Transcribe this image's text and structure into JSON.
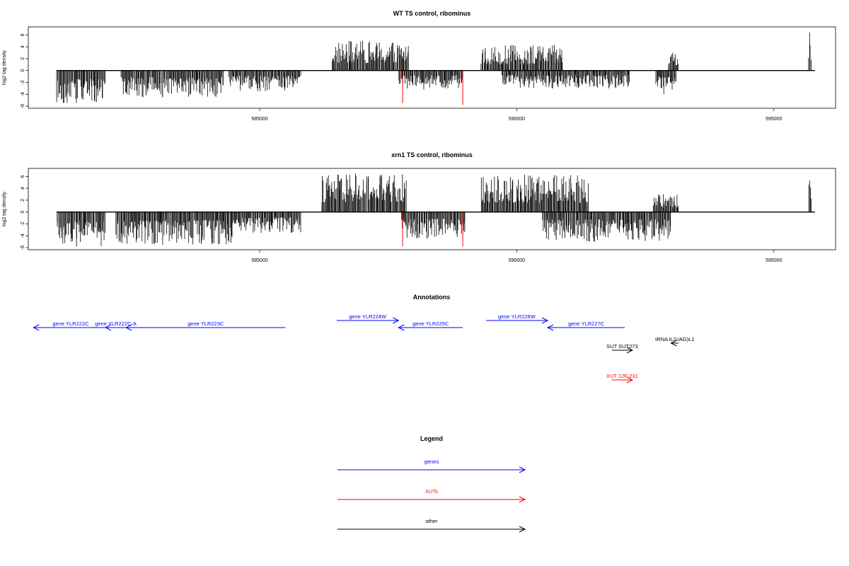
{
  "panels": [
    {
      "title": "WT TS control, ribominus",
      "ylabel": "log2 tag density",
      "yticks": [
        -6,
        -4,
        -2,
        0,
        2,
        4,
        6
      ],
      "xticks": [
        585000,
        590000,
        595000
      ],
      "ylim": [
        -6,
        7
      ],
      "xlim": [
        580500,
        596200
      ],
      "plus_strand": [
        {
          "from": 586400,
          "to": 587900,
          "max": 5.0
        },
        {
          "from": 589300,
          "to": 590900,
          "max": 4.3
        },
        {
          "from": 592950,
          "to": 593150,
          "max": 3.0
        },
        {
          "from": 595670,
          "to": 595730,
          "max": 6.4
        }
      ],
      "minus_strand": [
        {
          "from": 581050,
          "to": 582000,
          "min": -5.5
        },
        {
          "from": 582300,
          "to": 584300,
          "min": -4.5
        },
        {
          "from": 584400,
          "to": 585800,
          "min": -3.5
        },
        {
          "from": 587700,
          "to": 588950,
          "min": -3.2
        },
        {
          "from": 589700,
          "to": 592200,
          "min": -3.0
        },
        {
          "from": 592700,
          "to": 593100,
          "min": -4.0
        }
      ],
      "red_marks": [
        {
          "x": 587780,
          "y": -5.5
        },
        {
          "x": 588950,
          "y": -5.8
        }
      ]
    },
    {
      "title": "xrn1 TS control, ribominus",
      "ylabel": "log2 tag density",
      "yticks": [
        -6,
        -4,
        -2,
        0,
        2,
        4,
        6
      ],
      "xticks": [
        585000,
        590000,
        595000
      ],
      "ylim": [
        -6,
        7
      ],
      "xlim": [
        580500,
        596200
      ],
      "plus_strand": [
        {
          "from": 586200,
          "to": 587850,
          "max": 6.5
        },
        {
          "from": 589300,
          "to": 591400,
          "max": 6.3
        },
        {
          "from": 592650,
          "to": 593150,
          "max": 3.0
        },
        {
          "from": 595670,
          "to": 595730,
          "max": 5.3
        }
      ],
      "minus_strand": [
        {
          "from": 581050,
          "to": 582000,
          "min": -5.8
        },
        {
          "from": 582200,
          "to": 584500,
          "min": -5.5
        },
        {
          "from": 584500,
          "to": 585800,
          "min": -3.5
        },
        {
          "from": 587750,
          "to": 589000,
          "min": -4.5
        },
        {
          "from": 590500,
          "to": 593000,
          "min": -5.0
        }
      ],
      "red_marks": [
        {
          "x": 587780,
          "y": -5.8
        },
        {
          "x": 588950,
          "y": -5.8
        }
      ]
    }
  ],
  "annotations": {
    "title": "Annotations",
    "features": [
      {
        "label": "gene YLR222C",
        "start": 580600,
        "end": 582050,
        "strand": "-",
        "row": 0,
        "type": "gene"
      },
      {
        "label": "gene YLR222C-A",
        "start": 582000,
        "end": 582400,
        "strand": "-",
        "row": 0,
        "type": "gene"
      },
      {
        "label": "gene YLR223C",
        "start": 582400,
        "end": 585500,
        "strand": "-",
        "row": 0,
        "type": "gene"
      },
      {
        "label": "gene YLR224W",
        "start": 586500,
        "end": 587700,
        "strand": "+",
        "row": -1,
        "type": "gene"
      },
      {
        "label": "gene YLR225C",
        "start": 587700,
        "end": 588950,
        "strand": "-",
        "row": 0,
        "type": "gene"
      },
      {
        "label": "gene YLR226W",
        "start": 589400,
        "end": 590600,
        "strand": "+",
        "row": -1,
        "type": "gene"
      },
      {
        "label": "gene YLR227C",
        "start": 590600,
        "end": 592100,
        "strand": "-",
        "row": 0,
        "type": "gene"
      },
      {
        "label": "tRNA tL(UAG)L1",
        "start": 593000,
        "end": 593150,
        "strand": "-",
        "row": 1,
        "type": "other"
      },
      {
        "label": "SUT SUT273",
        "start": 591850,
        "end": 592250,
        "strand": "+",
        "row": 2,
        "type": "other"
      },
      {
        "label": "XUT 12F-231",
        "start": 591850,
        "end": 592250,
        "strand": "+",
        "row": 4,
        "type": "xut"
      }
    ]
  },
  "legend": {
    "title": "Legend",
    "items": [
      {
        "label": "genes",
        "color": "#0000ff"
      },
      {
        "label": "XUTs",
        "color": "#ff0000"
      },
      {
        "label": "other",
        "color": "#000000"
      }
    ]
  },
  "colors": {
    "gene": "#0000ff",
    "xut": "#ff0000",
    "other": "#000000",
    "red_mark": "#ff0000",
    "signal": "#000000"
  }
}
